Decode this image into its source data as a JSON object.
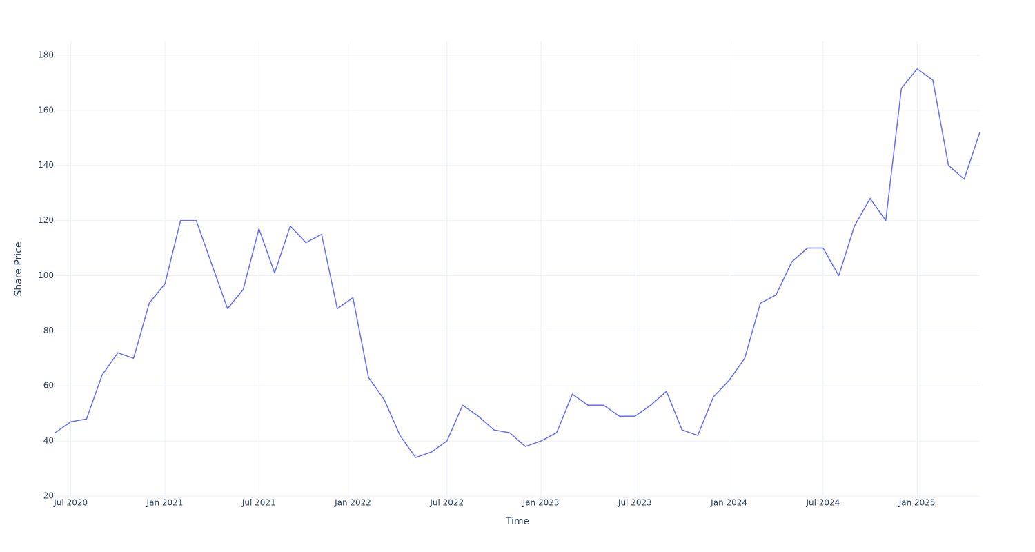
{
  "chart_data": {
    "type": "line",
    "x_label": "Time",
    "y_label": "Share Price",
    "x": [
      "2020-06",
      "2020-07",
      "2020-08",
      "2020-09",
      "2020-10",
      "2020-11",
      "2020-12",
      "2021-01",
      "2021-02",
      "2021-03",
      "2021-04",
      "2021-05",
      "2021-06",
      "2021-07",
      "2021-08",
      "2021-09",
      "2021-10",
      "2021-11",
      "2021-12",
      "2022-01",
      "2022-02",
      "2022-03",
      "2022-04",
      "2022-05",
      "2022-06",
      "2022-07",
      "2022-08",
      "2022-09",
      "2022-10",
      "2022-11",
      "2022-12",
      "2023-01",
      "2023-02",
      "2023-03",
      "2023-04",
      "2023-05",
      "2023-06",
      "2023-07",
      "2023-08",
      "2023-09",
      "2023-10",
      "2023-11",
      "2023-12",
      "2024-01",
      "2024-02",
      "2024-03",
      "2024-04",
      "2024-05",
      "2024-06",
      "2024-07",
      "2024-08",
      "2024-09",
      "2024-10",
      "2024-11",
      "2024-12",
      "2025-01",
      "2025-02",
      "2025-03",
      "2025-04",
      "2025-05"
    ],
    "values": [
      43,
      47,
      48,
      64,
      72,
      70,
      90,
      97,
      120,
      120,
      104,
      88,
      95,
      117,
      101,
      118,
      112,
      115,
      88,
      92,
      63,
      55,
      42,
      34,
      36,
      40,
      53,
      49,
      44,
      43,
      38,
      40,
      43,
      57,
      53,
      53,
      49,
      49,
      53,
      58,
      44,
      42,
      56,
      62,
      70,
      90,
      93,
      105,
      110,
      110,
      100,
      118,
      128,
      120,
      168,
      175,
      171,
      140,
      135,
      152
    ],
    "color": "#636efa",
    "xlim": [
      "2020-06",
      "2025-05"
    ],
    "xticks": [
      {
        "value": "2020-07",
        "label": "Jul 2020"
      },
      {
        "value": "2021-01",
        "label": "Jan 2021"
      },
      {
        "value": "2021-07",
        "label": "Jul 2021"
      },
      {
        "value": "2022-01",
        "label": "Jan 2022"
      },
      {
        "value": "2022-07",
        "label": "Jul 2022"
      },
      {
        "value": "2023-01",
        "label": "Jan 2023"
      },
      {
        "value": "2023-07",
        "label": "Jul 2023"
      },
      {
        "value": "2024-01",
        "label": "Jan 2024"
      },
      {
        "value": "2024-07",
        "label": "Jul 2024"
      },
      {
        "value": "2025-01",
        "label": "Jan 2025"
      }
    ],
    "ylim": [
      20,
      185
    ],
    "yticks": [
      20,
      40,
      60,
      80,
      100,
      120,
      140,
      160,
      180
    ],
    "grid": true
  }
}
